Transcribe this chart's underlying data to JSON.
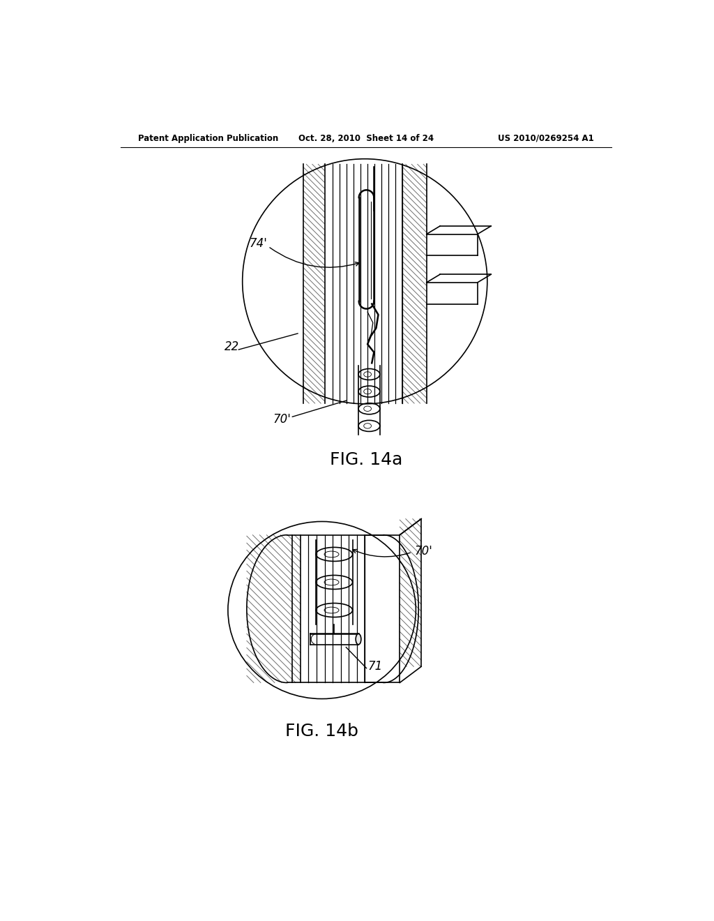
{
  "title_left": "Patent Application Publication",
  "title_mid": "Oct. 28, 2010  Sheet 14 of 24",
  "title_right": "US 2010/0269254 A1",
  "fig1_label": "FIG. 14a",
  "fig2_label": "FIG. 14b",
  "label_74": "74'",
  "label_22": "22",
  "label_70a": "70'",
  "label_70b": "70'",
  "label_71": "71",
  "bg_color": "#ffffff",
  "lc": "#000000"
}
